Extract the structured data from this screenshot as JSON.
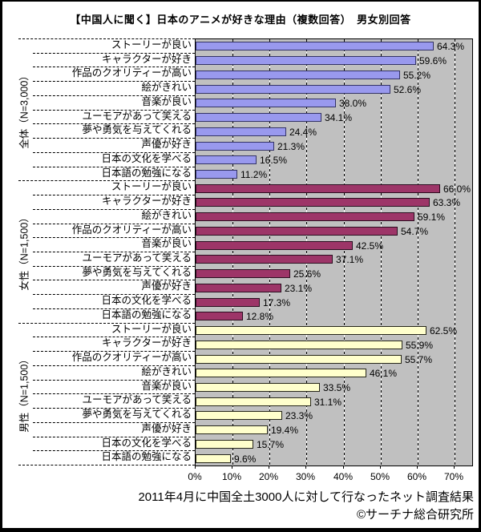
{
  "chart_data": {
    "type": "bar",
    "orientation": "horizontal",
    "title": "【中国人に聞く】日本のアニメが好きな理由（複数回答）　男女別回答",
    "xlabel": "",
    "ylabel": "",
    "xlim": [
      0,
      74.8
    ],
    "x_ticks_percent": [
      0,
      10,
      20,
      30,
      40,
      50,
      60,
      70
    ],
    "x_tick_labels": [
      "0%",
      "10%",
      "20%",
      "30%",
      "40%",
      "50%",
      "60%",
      "70%"
    ],
    "grid": "vertical-dashed",
    "legend": "none",
    "plot_background": "#C0C0C0",
    "value_label_suffix": "%",
    "groups": [
      {
        "label": "全体（N=3,000）",
        "bar_color": "#9999EE",
        "bar_border_color": "#333366",
        "items": [
          {
            "label": "ストーリーが良い",
            "value": 64.3
          },
          {
            "label": "キャラクターが好き",
            "value": 59.6
          },
          {
            "label": "作品のクオリティーが高い",
            "value": 55.2
          },
          {
            "label": "絵がきれい",
            "value": 52.6
          },
          {
            "label": "音楽が良い",
            "value": 38.0
          },
          {
            "label": "ユーモアがあって笑える",
            "value": 34.1
          },
          {
            "label": "夢や勇気を与えてくれる",
            "value": 24.4
          },
          {
            "label": "声優が好き",
            "value": 21.3
          },
          {
            "label": "日本の文化を学べる",
            "value": 16.5
          },
          {
            "label": "日本語の勉強になる",
            "value": 11.2
          }
        ]
      },
      {
        "label": "女性（N=1,500）",
        "bar_color": "#9D3568",
        "bar_border_color": "#2B0E20",
        "items": [
          {
            "label": "ストーリーが良い",
            "value": 66.0
          },
          {
            "label": "キャラクターが好き",
            "value": 63.3
          },
          {
            "label": "絵がきれい",
            "value": 59.1
          },
          {
            "label": "作品のクオリティーが高い",
            "value": 54.7
          },
          {
            "label": "音楽が良い",
            "value": 42.5
          },
          {
            "label": "ユーモアがあって笑える",
            "value": 37.1
          },
          {
            "label": "夢や勇気を与えてくれる",
            "value": 25.6
          },
          {
            "label": "声優が好き",
            "value": 23.1
          },
          {
            "label": "日本の文化を学べる",
            "value": 17.3
          },
          {
            "label": "日本語の勉強になる",
            "value": 12.8
          }
        ]
      },
      {
        "label": "男性（N=1,500）",
        "bar_color": "#FFFFCC",
        "bar_border_color": "#26261A",
        "items": [
          {
            "label": "ストーリーが良い",
            "value": 62.5
          },
          {
            "label": "キャラクターが好き",
            "value": 55.9
          },
          {
            "label": "作品のクオリティーが高い",
            "value": 55.7
          },
          {
            "label": "絵がきれい",
            "value": 46.1
          },
          {
            "label": "音楽が良い",
            "value": 33.5
          },
          {
            "label": "ユーモアがあって笑える",
            "value": 31.1
          },
          {
            "label": "夢や勇気を与えてくれる",
            "value": 23.3
          },
          {
            "label": "声優が好き",
            "value": 19.4
          },
          {
            "label": "日本の文化を学べる",
            "value": 15.7
          },
          {
            "label": "日本語の勉強になる",
            "value": 9.6
          }
        ]
      }
    ],
    "footnote": "2011年4月に中国全土3000人に対して行なったネット調査結果",
    "credit": "©サーチナ総合研究所"
  }
}
